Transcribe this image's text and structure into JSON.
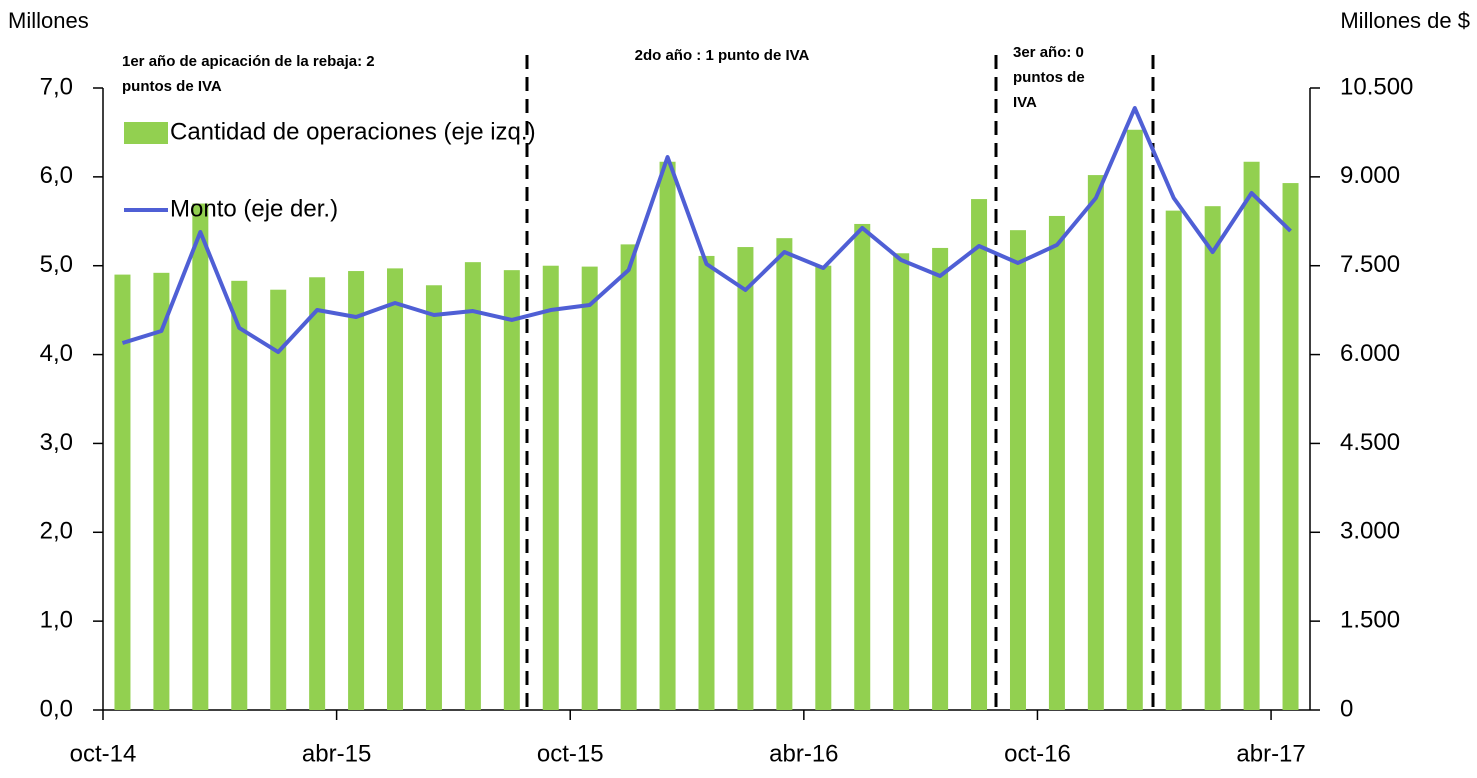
{
  "chart_data": {
    "type": "bar_line",
    "y_axis_title": "Millones",
    "y2_axis_title": "Millones de $",
    "categories": [
      "oct-14",
      null,
      null,
      null,
      null,
      null,
      "abr-15",
      null,
      null,
      null,
      null,
      null,
      "oct-15",
      null,
      null,
      null,
      null,
      null,
      "abr-16",
      null,
      null,
      null,
      null,
      null,
      "oct-16",
      null,
      null,
      null,
      null,
      null,
      "abr-17"
    ],
    "series": [
      {
        "name": "Cantidad de operaciones (eje izq.)",
        "type": "bar",
        "axis": "y",
        "color": "#92d050",
        "values": [
          4.9,
          4.92,
          5.7,
          4.83,
          4.73,
          4.87,
          4.94,
          4.97,
          4.78,
          5.04,
          4.95,
          5.0,
          4.99,
          5.24,
          6.17,
          5.11,
          5.21,
          5.31,
          5.0,
          5.47,
          5.14,
          5.2,
          5.75,
          5.4,
          5.56,
          6.02,
          6.53,
          5.62,
          5.67,
          6.17,
          5.93
        ]
      },
      {
        "name": "Monto (eje der.)",
        "type": "line",
        "axis": "y2",
        "color": "#4f5fd5",
        "values": [
          6195,
          6398,
          8069,
          6449,
          6043,
          6752,
          6634,
          6871,
          6668,
          6735,
          6584,
          6752,
          6837,
          7428,
          9335,
          7529,
          7090,
          7731,
          7461,
          8137,
          7596,
          7327,
          7833,
          7546,
          7850,
          8643,
          10162,
          8643,
          7731,
          8727,
          8086
        ]
      }
    ],
    "ylim": [
      0,
      7
    ],
    "yticks": [
      {
        "value": 0,
        "label": "0,0"
      },
      {
        "value": 1,
        "label": "1,0"
      },
      {
        "value": 2,
        "label": "2,0"
      },
      {
        "value": 3,
        "label": "3,0"
      },
      {
        "value": 4,
        "label": "4,0"
      },
      {
        "value": 5,
        "label": "5,0"
      },
      {
        "value": 6,
        "label": "6,0"
      },
      {
        "value": 7,
        "label": "7,0"
      }
    ],
    "y2lim": [
      0,
      10500
    ],
    "y2ticks": [
      0,
      {
        "value": 1500,
        "label": "1.500"
      },
      {
        "value": 3000,
        "label": "3.000"
      },
      {
        "value": 4500,
        "label": "4.500"
      },
      {
        "value": 6000,
        "label": "6.000"
      },
      {
        "value": 7500,
        "label": "7.500"
      },
      {
        "value": 9000,
        "label": "9.000"
      },
      {
        "value": 10500,
        "label": "10.500"
      }
    ],
    "annotations": [
      {
        "lines": [
          "1er año de apicación de la rebaja: 2",
          "puntos de IVA"
        ]
      },
      {
        "lines": [
          "2do año : 1 punto de IVA"
        ]
      },
      {
        "lines": [
          "3er año: 0",
          "puntos de",
          "IVA"
        ]
      }
    ],
    "legend": "upper left"
  }
}
